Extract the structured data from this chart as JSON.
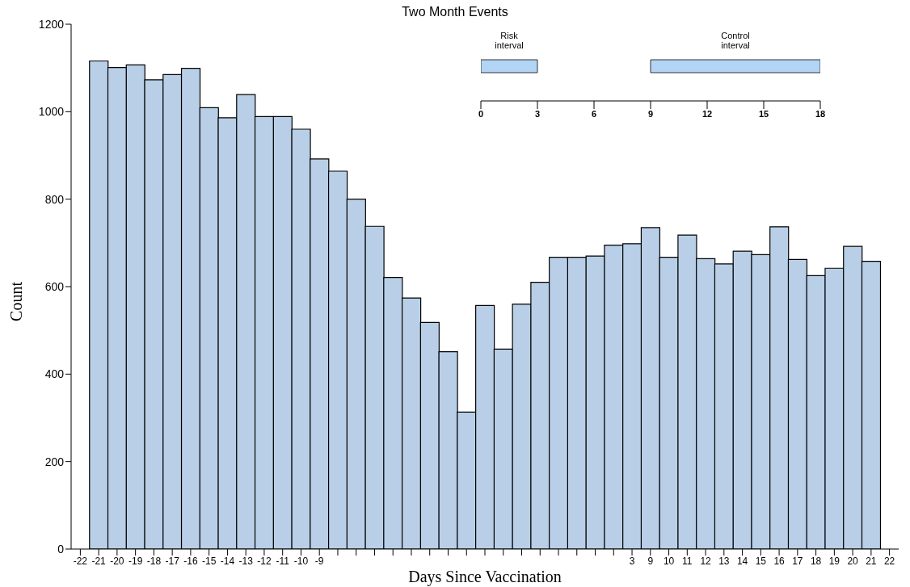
{
  "chart_data": [
    {
      "type": "bar",
      "title": "Two Month Events",
      "xlabel": "Days Since Vaccination",
      "ylabel": "Count",
      "categories": [
        "-22",
        "-21",
        "-20",
        "-19",
        "-18",
        "-17",
        "-16",
        "-15",
        "-14",
        "-13",
        "-12",
        "-11",
        "-10",
        "-9",
        null,
        null,
        null,
        null,
        null,
        null,
        null,
        null,
        null,
        null,
        null,
        null,
        null,
        null,
        null,
        null,
        "3",
        "9",
        "10",
        "11",
        "12",
        "13",
        "14",
        "15",
        "16",
        "17",
        "18",
        "19",
        "20",
        "21",
        "22"
      ],
      "values": [
        null,
        1116,
        1101,
        1107,
        1073,
        1085,
        1099,
        1009,
        986,
        1039,
        989,
        989,
        960,
        892,
        864,
        800,
        738,
        621,
        574,
        518,
        451,
        313,
        557,
        457,
        560,
        610,
        667,
        667,
        670,
        695,
        698,
        735,
        667,
        718,
        664,
        652,
        681,
        673,
        737,
        662,
        625,
        642,
        692,
        658,
        null
      ],
      "color": "#b9cfe7",
      "ylim": [
        0,
        1200
      ],
      "yticks": [
        0,
        200,
        400,
        600,
        800,
        1000,
        1200
      ]
    },
    {
      "type": "bar",
      "orientation": "horizontal",
      "categories": [
        null
      ],
      "series": [
        {
          "name": "Risk interval",
          "color": "#b3d5f5",
          "values": [
            3
          ],
          "base": [
            0
          ]
        },
        {
          "name": "Control interval",
          "color": "#b3d5f5",
          "values": [
            9
          ],
          "base": [
            9
          ]
        }
      ],
      "xlim": [
        0,
        18
      ],
      "xticks": [
        0,
        3,
        6,
        9,
        12,
        15,
        18
      ],
      "tick_labels": "x"
    }
  ]
}
